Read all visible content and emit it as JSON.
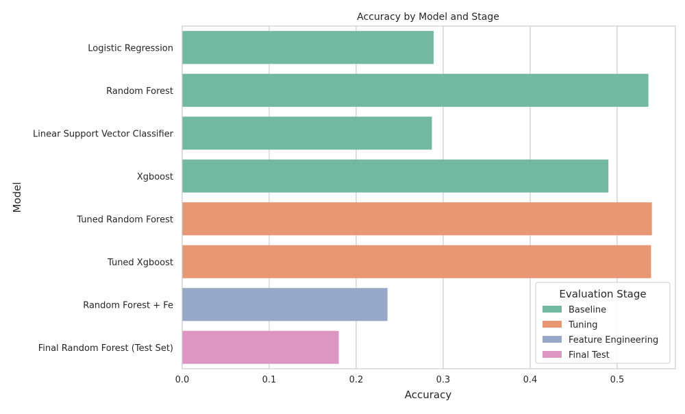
{
  "chart_data": {
    "type": "bar",
    "orientation": "horizontal",
    "title": "Accuracy by Model and Stage",
    "xlabel": "Accuracy",
    "ylabel": "Model",
    "xlim": [
      0,
      0.567
    ],
    "xticks": [
      0.0,
      0.1,
      0.2,
      0.3,
      0.4,
      0.5
    ],
    "xtick_labels": [
      "0.0",
      "0.1",
      "0.2",
      "0.3",
      "0.4",
      "0.5"
    ],
    "grid": true,
    "legend": {
      "title": "Evaluation Stage",
      "placement": "lower-right",
      "entries": [
        {
          "label": "Baseline",
          "color": "#73b8a0"
        },
        {
          "label": "Tuning",
          "color": "#e89774"
        },
        {
          "label": "Feature Engineering",
          "color": "#96a7c7"
        },
        {
          "label": "Final Test",
          "color": "#db96c2"
        }
      ]
    },
    "bars": [
      {
        "model": "Logistic Regression",
        "value": 0.289,
        "stage": "Baseline"
      },
      {
        "model": "Random Forest",
        "value": 0.536,
        "stage": "Baseline"
      },
      {
        "model": "Linear Support Vector Classifier",
        "value": 0.287,
        "stage": "Baseline"
      },
      {
        "model": "Xgboost",
        "value": 0.49,
        "stage": "Baseline"
      },
      {
        "model": "Tuned Random Forest",
        "value": 0.54,
        "stage": "Tuning"
      },
      {
        "model": "Tuned Xgboost",
        "value": 0.539,
        "stage": "Tuning"
      },
      {
        "model": "Random Forest + Fe",
        "value": 0.236,
        "stage": "Feature Engineering"
      },
      {
        "model": "Final Random Forest (Test Set)",
        "value": 0.18,
        "stage": "Final Test"
      }
    ]
  }
}
